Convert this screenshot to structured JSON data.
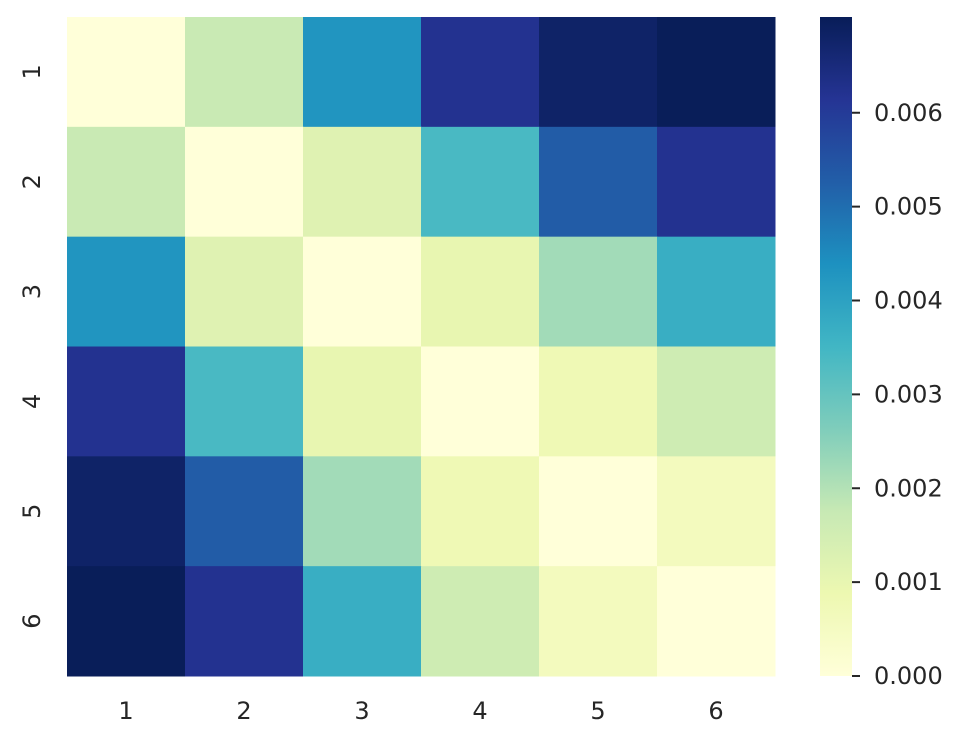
{
  "chart_data": {
    "type": "heatmap",
    "x_categories": [
      "1",
      "2",
      "3",
      "4",
      "5",
      "6"
    ],
    "y_categories": [
      "1",
      "2",
      "3",
      "4",
      "5",
      "6"
    ],
    "values": [
      [
        0.0,
        0.0017,
        0.0043,
        0.0062,
        0.0068,
        0.007
      ],
      [
        0.0017,
        0.0,
        0.0012,
        0.0034,
        0.0053,
        0.0062
      ],
      [
        0.0043,
        0.0012,
        0.0,
        0.001,
        0.0022,
        0.0037
      ],
      [
        0.0062,
        0.0034,
        0.001,
        0.0,
        0.0008,
        0.0016
      ],
      [
        0.0068,
        0.0053,
        0.0022,
        0.0008,
        0.0,
        0.0006
      ],
      [
        0.007,
        0.0062,
        0.0037,
        0.0016,
        0.0006,
        0.0
      ]
    ],
    "colormap": "YlGnBu",
    "colorbar": {
      "range": [
        0.0,
        0.00702
      ],
      "ticks": [
        0.0,
        0.001,
        0.002,
        0.003,
        0.004,
        0.005,
        0.006
      ],
      "tick_labels": [
        "0.000",
        "0.001",
        "0.002",
        "0.003",
        "0.004",
        "0.005",
        "0.006"
      ],
      "placement": "right"
    },
    "colormap_stops": [
      "#ffffd9",
      "#edf8b1",
      "#c7e9b4",
      "#7fcdbb",
      "#41b6c4",
      "#1d91c0",
      "#225ea8",
      "#253494",
      "#081d58"
    ],
    "text_color": "#262626"
  }
}
